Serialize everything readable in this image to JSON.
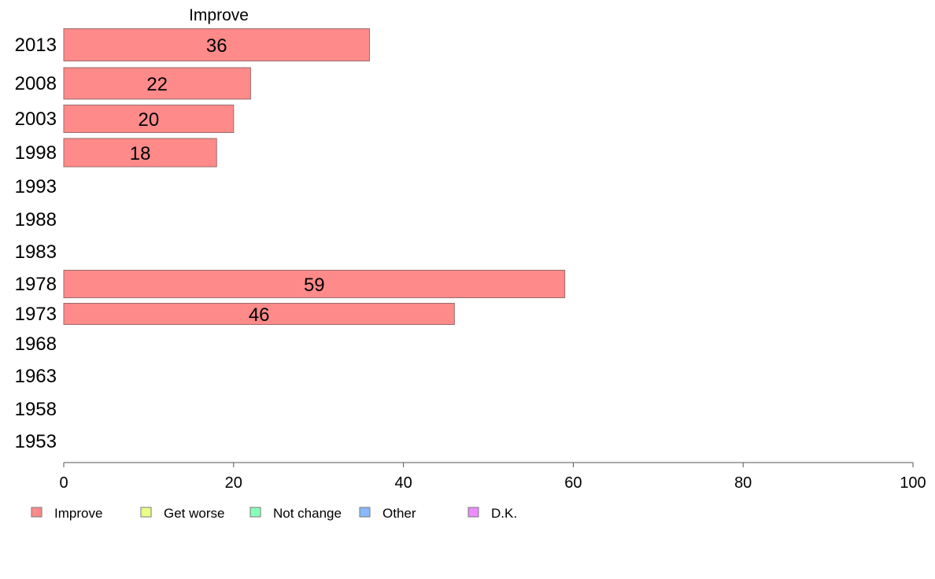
{
  "chart_data": {
    "type": "bar",
    "orientation": "horizontal",
    "panel_title": "Improve",
    "categories": [
      "2013",
      "2008",
      "2003",
      "1998",
      "1993",
      "1988",
      "1983",
      "1978",
      "1973",
      "1968",
      "1963",
      "1958",
      "1953"
    ],
    "series": [
      {
        "name": "Improve",
        "color": "#ff8a8a",
        "values": [
          36,
          22,
          20,
          18,
          null,
          null,
          null,
          59,
          46,
          null,
          null,
          null,
          null
        ],
        "labels": [
          "36",
          "22",
          "20",
          "18",
          "",
          "",
          "",
          "59",
          "46",
          "",
          "",
          "",
          ""
        ]
      }
    ],
    "xlim": [
      0,
      100
    ],
    "xticks": [
      "0",
      "20",
      "40",
      "60",
      "80",
      "100"
    ],
    "grid": false,
    "legend": {
      "position": "bottom-left",
      "entries": [
        {
          "label": "Improve",
          "color": "#ff8a8a"
        },
        {
          "label": "Get worse",
          "color": "#eaff8a"
        },
        {
          "label": "Not change",
          "color": "#8affba"
        },
        {
          "label": "Other",
          "color": "#8ab8ff"
        },
        {
          "label": "D.K.",
          "color": "#ee8aff"
        }
      ]
    }
  }
}
